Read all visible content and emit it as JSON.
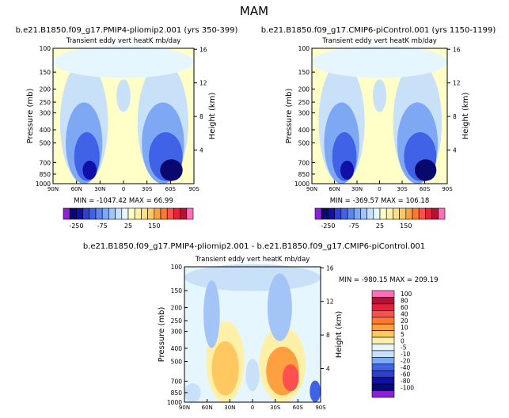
{
  "page_title": "MAM",
  "chart_data": [
    {
      "type": "heatmap",
      "case_title": "b.e21.B1850.f09_g17.PMIP4-pliomip2.001 (yrs 350-399)",
      "variable": "Transient eddy vert heatK",
      "units": "mb/day",
      "ylabel": "Pressure (mb)",
      "y2label": "Height (km)",
      "xticks": [
        "90N",
        "60N",
        "30N",
        "0",
        "30S",
        "60S",
        "90S"
      ],
      "yticks": [
        "100",
        "150",
        "200",
        "250",
        "300",
        "400",
        "500",
        "700",
        "850",
        "1000"
      ],
      "y2ticks": [
        "16",
        "12",
        "8",
        "4"
      ],
      "min_label": "MIN = -1047.42",
      "max_label": "MAX =   66.99",
      "min": -1047.42,
      "max": 66.99,
      "colorbar_labels": [
        "-250",
        "-75",
        "25",
        "150"
      ],
      "colorbar_colors": [
        "#8c1fd8",
        "#08086e",
        "#1010a8",
        "#2e3fd6",
        "#3f62e6",
        "#5b86ee",
        "#7fa8f4",
        "#a3c4f6",
        "#c8e0f8",
        "#e6f6ff",
        "#ffffc8",
        "#fff0a8",
        "#ffe080",
        "#ffc860",
        "#ffa040",
        "#ff7a30",
        "#ff5050",
        "#e8203c",
        "#b01434",
        "#ff70b8"
      ]
    },
    {
      "type": "heatmap",
      "case_title": "b.e21.B1850.f09_g17.CMIP6-piControl.001 (yrs 1150-1199)",
      "variable": "Transient eddy vert heatK",
      "units": "mb/day",
      "ylabel": "Pressure (mb)",
      "y2label": "Height (km)",
      "xticks": [
        "90N",
        "60N",
        "30N",
        "0",
        "30S",
        "60S",
        "90S"
      ],
      "yticks": [
        "100",
        "150",
        "200",
        "250",
        "300",
        "400",
        "500",
        "700",
        "850",
        "1000"
      ],
      "y2ticks": [
        "16",
        "12",
        "8",
        "4"
      ],
      "min_label": "MIN = -369.57",
      "max_label": "MAX = 106.18",
      "min": -369.57,
      "max": 106.18,
      "colorbar_labels": [
        "-250",
        "-75",
        "25",
        "150"
      ],
      "colorbar_colors": [
        "#8c1fd8",
        "#08086e",
        "#1010a8",
        "#2e3fd6",
        "#3f62e6",
        "#5b86ee",
        "#7fa8f4",
        "#a3c4f6",
        "#c8e0f8",
        "#e6f6ff",
        "#ffffc8",
        "#fff0a8",
        "#ffe080",
        "#ffc860",
        "#ffa040",
        "#ff7a30",
        "#ff5050",
        "#e8203c",
        "#b01434",
        "#ff70b8"
      ]
    },
    {
      "type": "heatmap",
      "case_title": "b.e21.B1850.f09_g17.PMIP4-pliomip2.001 - b.e21.B1850.f09_g17.CMIP6-piControl.001",
      "variable": "Transient eddy vert heatK",
      "units": "mb/day",
      "ylabel": "Pressure (mb)",
      "y2label": "Height (km)",
      "xticks": [
        "90N",
        "60N",
        "30N",
        "0",
        "30S",
        "60S",
        "90S"
      ],
      "yticks": [
        "100",
        "150",
        "200",
        "250",
        "300",
        "400",
        "500",
        "700",
        "850",
        "1000"
      ],
      "y2ticks": [
        "16",
        "12",
        "8",
        "4"
      ],
      "min_label": "MIN = -980.15",
      "max_label": "MAX = 209.19",
      "min": -980.15,
      "max": 209.19,
      "colorbar_labels": [
        "100",
        "80",
        "60",
        "40",
        "20",
        "10",
        "5",
        "0",
        "-5",
        "-10",
        "-20",
        "-40",
        "-60",
        "-80",
        "-100"
      ],
      "colorbar_colors": [
        "#ff70b8",
        "#b01434",
        "#e8203c",
        "#ff5050",
        "#ff7a30",
        "#ffa040",
        "#ffc860",
        "#fff0a8",
        "#e6f6ff",
        "#c8e0f8",
        "#7fa8f4",
        "#3f62e6",
        "#2e3fd6",
        "#1010a8",
        "#08086e",
        "#8c1fd8"
      ]
    }
  ]
}
